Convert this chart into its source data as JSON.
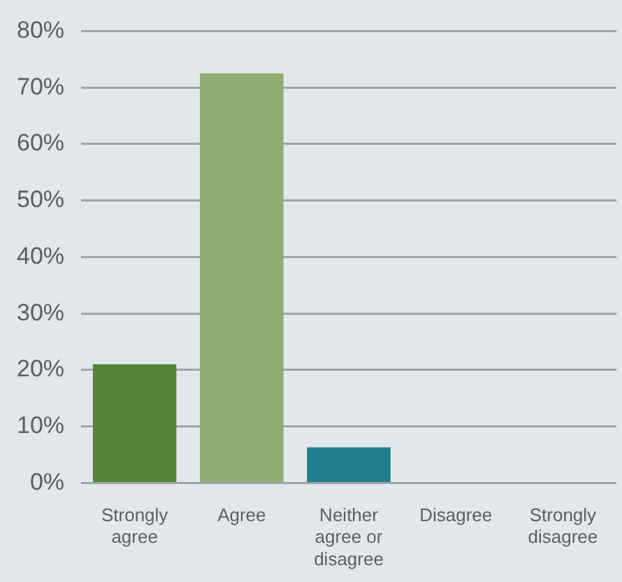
{
  "chart_data": {
    "type": "bar",
    "categories": [
      "Strongly agree",
      "Agree",
      "Neither agree or disagree",
      "Disagree",
      "Strongly disagree"
    ],
    "values": [
      21,
      72.5,
      6.3,
      0,
      0
    ],
    "colors": [
      "#56843a",
      "#8fac72",
      "#217e8c",
      "#8fac72",
      "#8fac72"
    ],
    "ylim": [
      0,
      80
    ],
    "yticks": [
      {
        "value": 0,
        "label": "0%"
      },
      {
        "value": 10,
        "label": "10%"
      },
      {
        "value": 20,
        "label": "20%"
      },
      {
        "value": 30,
        "label": "30%"
      },
      {
        "value": 40,
        "label": "40%"
      },
      {
        "value": 50,
        "label": "50%"
      },
      {
        "value": 60,
        "label": "60%"
      },
      {
        "value": 70,
        "label": "70%"
      },
      {
        "value": 80,
        "label": "80%"
      }
    ],
    "grid": "y",
    "legend": false
  }
}
